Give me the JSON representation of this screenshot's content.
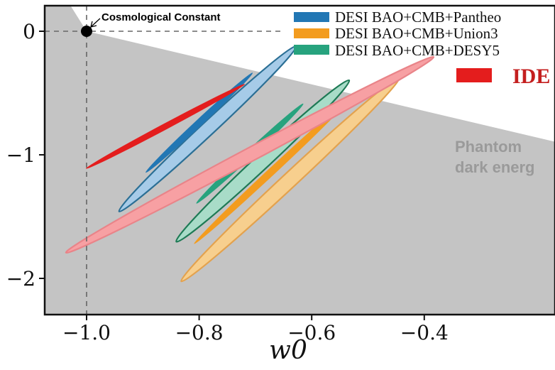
{
  "chart_data": {
    "type": "contour",
    "xlabel": "w0",
    "ylabel": "",
    "xlim": [
      -1.07,
      -0.33
    ],
    "ylim": [
      -2.3,
      0.22
    ],
    "x_ticks": [
      {
        "value": -1.0,
        "label": "−1.0"
      },
      {
        "value": -0.8,
        "label": "−0.8"
      },
      {
        "value": -0.6,
        "label": "−0.6"
      },
      {
        "value": -0.4,
        "label": "−0.4"
      }
    ],
    "y_ticks": [
      {
        "value": 0,
        "label": "0"
      },
      {
        "value": -1,
        "label": "−1"
      },
      {
        "value": -2,
        "label": "−2"
      }
    ],
    "reference_point": {
      "label": "Cosmological Constant",
      "x": -1.0,
      "y": 0.0
    },
    "region_label": {
      "line1": "Phantom",
      "line2": "dark energ",
      "boundary": [
        [
          -1.0,
          0.0
        ],
        [
          -0.33,
          -0.72
        ]
      ]
    },
    "legend": {
      "placement": "top-right",
      "items": [
        {
          "name": "DESI BAO+CMB+Pantheo",
          "color": "#2277b4"
        },
        {
          "name": "DESI BAO+CMB+Union3",
          "color": "#f39c1f"
        },
        {
          "name": "DESI BAO+CMB+DESY5",
          "color": "#27a37e"
        }
      ],
      "extra_item": {
        "name": "IDE",
        "color": "#e41d1d"
      }
    },
    "series": [
      {
        "name": "DESI BAO+CMB+Union3",
        "outer": {
          "cx": -0.638,
          "cy": -1.2,
          "rx": 0.265,
          "ry": 0.06,
          "angle": -43
        },
        "inner": {
          "cx": -0.67,
          "cy": -1.13,
          "rx": 0.19,
          "ry": 0.03,
          "angle": -43
        },
        "fill_outer": "#f7cf8e",
        "fill_inner": "#f39c1f",
        "stroke": "#e3a24e"
      },
      {
        "name": "DESI BAO+CMB+Pantheo",
        "outer": {
          "cx": -0.785,
          "cy": -0.79,
          "rx": 0.215,
          "ry": 0.055,
          "angle": -43
        },
        "inner": {
          "cx": -0.8,
          "cy": -0.74,
          "rx": 0.13,
          "ry": 0.028,
          "angle": -43
        },
        "fill_outer": "#a6cbe8",
        "fill_inner": "#2277b4",
        "stroke": "#2b6f95"
      },
      {
        "name": "DESI BAO+CMB+DESY5",
        "outer": {
          "cx": -0.687,
          "cy": -1.05,
          "rx": 0.21,
          "ry": 0.06,
          "angle": -43
        },
        "inner": {
          "cx": -0.71,
          "cy": -0.99,
          "rx": 0.13,
          "ry": 0.03,
          "angle": -43
        },
        "fill_outer": "#a8dcc8",
        "fill_inner": "#27a37e",
        "stroke": "#1e7a55"
      },
      {
        "name": "IDE",
        "outer": {
          "cx": -0.71,
          "cy": -1.0,
          "rx": 0.37,
          "ry": 0.055,
          "angle": -28
        },
        "inner": {
          "cx": -0.86,
          "cy": -0.77,
          "rx": 0.16,
          "ry": 0.025,
          "angle": -28
        },
        "fill_outer": "#f7a0a3",
        "fill_inner": "#e41d1d",
        "stroke": "#e98489"
      }
    ]
  }
}
